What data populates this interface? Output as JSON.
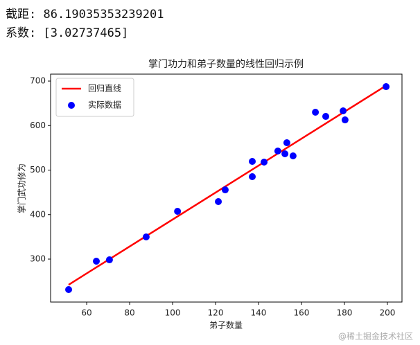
{
  "output": [
    "截距: 86.19035353239201",
    "系数: [3.02737465]"
  ],
  "watermark": "@稀土掘金技术社区",
  "chart_data": {
    "type": "scatter",
    "title": "掌门功力和弟子数量的线性回归示例",
    "xlabel": "弟子数量",
    "ylabel": "掌门武功修为",
    "xlim": [
      43.2,
      206.8
    ],
    "ylim": [
      203.5,
      715.6
    ],
    "xticks": [
      60,
      80,
      100,
      120,
      140,
      160,
      180,
      200
    ],
    "yticks": [
      300,
      400,
      500,
      600,
      700
    ],
    "legend": "upper left",
    "grid": false,
    "series": [
      {
        "name": "回归直线",
        "type": "line",
        "color": "#ff0000",
        "x": [
          51.6,
          199.4
        ],
        "values": [
          242.4,
          689.8
        ]
      },
      {
        "name": "实际数据",
        "type": "scatter",
        "color": "#0000ff",
        "x": [
          51.6,
          64.5,
          70.6,
          87.7,
          102.3,
          121.3,
          124.5,
          137.1,
          137.1,
          142.6,
          149.0,
          152.3,
          153.2,
          156.1,
          166.5,
          171.3,
          179.4,
          180.3,
          199.4
        ],
        "values": [
          231.5,
          295.3,
          298.4,
          349.8,
          407.4,
          429.2,
          455.6,
          485.2,
          519.5,
          517.9,
          542.8,
          536.6,
          561.5,
          531.9,
          630.0,
          620.6,
          633.1,
          612.8,
          687.5
        ]
      }
    ]
  }
}
